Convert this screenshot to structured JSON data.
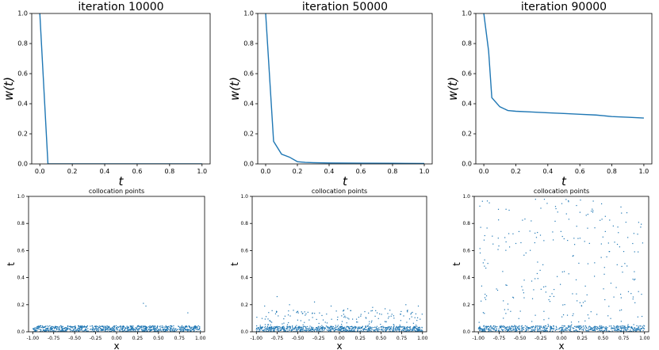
{
  "chart_data": [
    {
      "type": "line",
      "title": "iteration 10000",
      "xlabel": "t",
      "ylabel": "w(t)",
      "xlim": [
        -0.05,
        1.05
      ],
      "ylim": [
        0.0,
        1.0
      ],
      "xticks": [
        "0.0",
        "0.2",
        "0.4",
        "0.6",
        "0.8",
        "1.0"
      ],
      "yticks": [
        "0.0",
        "0.2",
        "0.4",
        "0.6",
        "0.8",
        "1.0"
      ],
      "series": [
        {
          "x": [
            0.0,
            0.02,
            0.05,
            0.1,
            0.2,
            0.4,
            0.6,
            0.8,
            1.0
          ],
          "y": [
            1.0,
            0.6,
            0.0,
            0.0,
            0.0,
            0.0,
            0.0,
            0.0,
            0.0
          ]
        }
      ],
      "color": "#1f77b4"
    },
    {
      "type": "line",
      "title": "iteration 50000",
      "xlabel": "t",
      "ylabel": "w(t)",
      "xlim": [
        -0.05,
        1.05
      ],
      "ylim": [
        0.0,
        1.0
      ],
      "xticks": [
        "0.0",
        "0.2",
        "0.4",
        "0.6",
        "0.8",
        "1.0"
      ],
      "yticks": [
        "0.0",
        "0.2",
        "0.4",
        "0.6",
        "0.8",
        "1.0"
      ],
      "series": [
        {
          "x": [
            0.0,
            0.05,
            0.1,
            0.15,
            0.2,
            0.25,
            0.3,
            0.4,
            0.6,
            0.8,
            1.0
          ],
          "y": [
            1.0,
            0.15,
            0.065,
            0.045,
            0.015,
            0.01,
            0.008,
            0.006,
            0.005,
            0.004,
            0.003
          ]
        }
      ],
      "color": "#1f77b4"
    },
    {
      "type": "line",
      "title": "iteration 90000",
      "xlabel": "t",
      "ylabel": "w(t)",
      "xlim": [
        -0.05,
        1.05
      ],
      "ylim": [
        0.0,
        1.0
      ],
      "xticks": [
        "0.0",
        "0.2",
        "0.4",
        "0.6",
        "0.8",
        "1.0"
      ],
      "yticks": [
        "0.0",
        "0.2",
        "0.4",
        "0.6",
        "0.8",
        "1.0"
      ],
      "series": [
        {
          "x": [
            0.0,
            0.03,
            0.05,
            0.1,
            0.15,
            0.2,
            0.3,
            0.4,
            0.5,
            0.6,
            0.7,
            0.8,
            0.9,
            1.0
          ],
          "y": [
            1.0,
            0.75,
            0.44,
            0.38,
            0.355,
            0.35,
            0.345,
            0.34,
            0.335,
            0.33,
            0.325,
            0.315,
            0.31,
            0.305
          ]
        }
      ],
      "color": "#1f77b4"
    },
    {
      "type": "scatter",
      "title": "collocation points",
      "xlabel": "x",
      "ylabel": "t",
      "xlim": [
        -1.05,
        1.05
      ],
      "ylim": [
        0.0,
        1.0
      ],
      "xticks": [
        "-1.00",
        "-0.75",
        "-0.50",
        "-0.25",
        "0.00",
        "0.25",
        "0.50",
        "0.75",
        "1.00"
      ],
      "yticks": [
        "0.0",
        "0.2",
        "0.4",
        "0.6",
        "0.8",
        "1.0"
      ],
      "points": {
        "dense_band_count": 900,
        "dense_band_tmax": 0.045,
        "sparse": [
          [
            0.32,
            0.21
          ],
          [
            0.35,
            0.19
          ],
          [
            0.85,
            0.14
          ]
        ]
      },
      "color": "#1f77b4"
    },
    {
      "type": "scatter",
      "title": "collocation points",
      "xlabel": "x",
      "ylabel": "t",
      "xlim": [
        -1.05,
        1.05
      ],
      "ylim": [
        0.0,
        1.0
      ],
      "xticks": [
        "-1.00",
        "-0.75",
        "-0.50",
        "-0.25",
        "0.00",
        "0.25",
        "0.50",
        "0.75",
        "1.00"
      ],
      "yticks": [
        "0.0",
        "0.2",
        "0.4",
        "0.6",
        "0.8",
        "1.0"
      ],
      "points": {
        "dense_band_count": 700,
        "dense_band_tmax": 0.04,
        "mid_band_count": 200,
        "mid_band_tmax": 0.16,
        "sparse": [
          [
            -0.9,
            0.19
          ],
          [
            -0.75,
            0.26
          ],
          [
            -0.6,
            0.2
          ],
          [
            -0.3,
            0.22
          ],
          [
            0.1,
            0.17
          ],
          [
            0.4,
            0.18
          ],
          [
            0.55,
            0.17
          ],
          [
            0.8,
            0.2
          ],
          [
            0.95,
            0.19
          ],
          [
            -0.1,
            0.19
          ]
        ]
      },
      "color": "#1f77b4"
    },
    {
      "type": "scatter",
      "title": "collocation points",
      "xlabel": "x",
      "ylabel": "t",
      "xlim": [
        -1.05,
        1.05
      ],
      "ylim": [
        0.0,
        1.0
      ],
      "xticks": [
        "-1.00",
        "-0.75",
        "-0.50",
        "-0.25",
        "0.00",
        "0.25",
        "0.50",
        "0.75",
        "1.00"
      ],
      "yticks": [
        "0.0",
        "0.2",
        "0.4",
        "0.6",
        "0.8",
        "1.0"
      ],
      "points": {
        "dense_band_count": 650,
        "dense_band_tmax": 0.045,
        "uniform_count": 260,
        "uniform_tmax": 0.98
      },
      "color": "#1f77b4"
    }
  ]
}
